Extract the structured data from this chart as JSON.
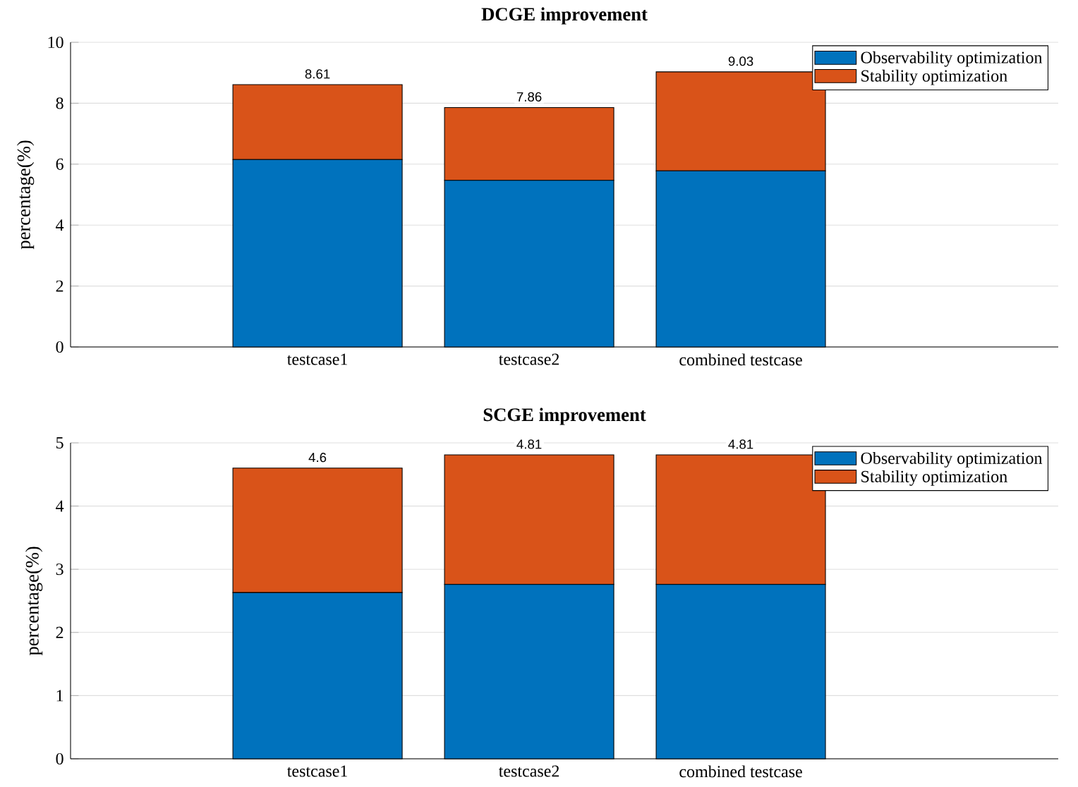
{
  "chart_data": [
    {
      "type": "bar",
      "title": "DCGE improvement",
      "ylabel": "percentage(%)",
      "categories": [
        "testcase1",
        "testcase2",
        "combined testcase"
      ],
      "series": [
        {
          "name": "Observability optimization",
          "color": "#0072bd",
          "values": [
            6.15,
            5.47,
            5.78
          ]
        },
        {
          "name": "Stability optimization",
          "color": "#d95319",
          "values": [
            2.46,
            2.39,
            3.25
          ]
        }
      ],
      "stacked": true,
      "totals": [
        "8.61",
        "7.86",
        "9.03"
      ],
      "ylim": [
        0,
        10
      ],
      "yticks": [
        0,
        2,
        4,
        6,
        8,
        10
      ],
      "grid": "y",
      "legend": "top right"
    },
    {
      "type": "bar",
      "title": "SCGE improvement",
      "ylabel": "percentage(%)",
      "categories": [
        "testcase1",
        "testcase2",
        "combined testcase"
      ],
      "series": [
        {
          "name": "Observability optimization",
          "color": "#0072bd",
          "values": [
            2.63,
            2.76,
            2.76
          ]
        },
        {
          "name": "Stability optimization",
          "color": "#d95319",
          "values": [
            1.97,
            2.05,
            2.05
          ]
        }
      ],
      "stacked": true,
      "totals": [
        "4.6",
        "4.81",
        "4.81"
      ],
      "ylim": [
        0,
        5
      ],
      "yticks": [
        0,
        1,
        2,
        3,
        4,
        5
      ],
      "grid": "y",
      "legend": "top right"
    }
  ]
}
